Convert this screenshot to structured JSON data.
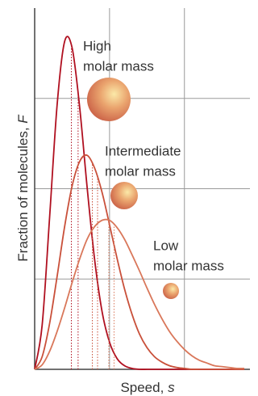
{
  "chart_data": {
    "type": "line",
    "x_label": {
      "text": "Speed,",
      "symbol": "s"
    },
    "y_label": {
      "text": "Fraction of molecules,",
      "symbol": "F"
    },
    "x": [
      0,
      0.1,
      0.2,
      0.3,
      0.4,
      0.5,
      0.6,
      0.7,
      0.8,
      0.9,
      1.0,
      1.1,
      1.2,
      1.3,
      1.4,
      1.5,
      1.6,
      1.7,
      1.8,
      1.9,
      2.0,
      2.1,
      2.2,
      2.3,
      2.4,
      2.5,
      2.6,
      2.7,
      2.8
    ],
    "xlim": [
      0,
      2.875
    ],
    "ylim": [
      0,
      4
    ],
    "xticks": [
      1,
      2
    ],
    "yticks": [
      1,
      2,
      3
    ],
    "grid": true,
    "series": [
      {
        "label": [
          "High",
          "molar mass"
        ],
        "color": "#b01020",
        "reference_x": [
          0.49,
          0.58
        ],
        "values": [
          0,
          0.49,
          1.69,
          2.93,
          3.63,
          3.56,
          2.91,
          2.02,
          1.22,
          0.64,
          0.3,
          0.12,
          0.04,
          0.01,
          0,
          0,
          0,
          0,
          0,
          0,
          0,
          0,
          0,
          0,
          0,
          0,
          0,
          0,
          0
        ]
      },
      {
        "label": [
          "Intermediate",
          "molar mass"
        ],
        "color": "#c9503a",
        "reference_x": [
          0.77,
          0.84
        ],
        "values": [
          0,
          0.14,
          0.51,
          1.03,
          1.58,
          2.03,
          2.3,
          2.37,
          2.23,
          1.96,
          1.6,
          1.23,
          0.89,
          0.61,
          0.39,
          0.24,
          0.14,
          0.08,
          0.04,
          0.02,
          0.01,
          0,
          0,
          0,
          0,
          0,
          0,
          0,
          0
        ]
      },
      {
        "label": [
          "Low",
          "molar mass"
        ],
        "color": "#d9775a",
        "reference_x": [
          0.99,
          1.06
        ],
        "values": [
          0,
          0.05,
          0.2,
          0.42,
          0.68,
          0.96,
          1.22,
          1.44,
          1.58,
          1.65,
          1.65,
          1.57,
          1.44,
          1.27,
          1.09,
          0.9,
          0.72,
          0.56,
          0.42,
          0.31,
          0.22,
          0.15,
          0.1,
          0.07,
          0.04,
          0.03,
          0.02,
          0.01,
          0.01
        ]
      }
    ]
  }
}
